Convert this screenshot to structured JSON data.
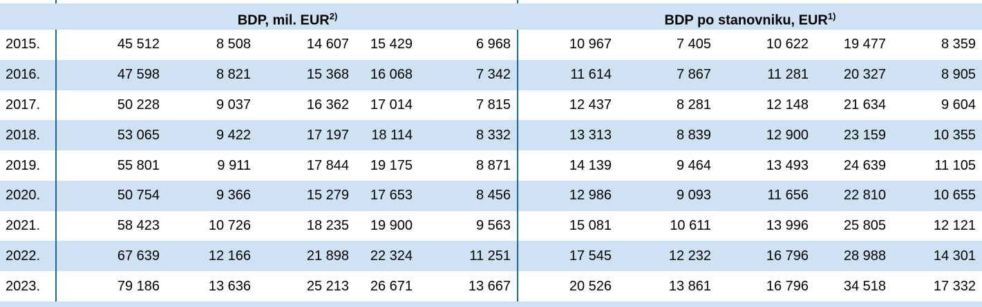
{
  "colors": {
    "band_blue": "#cfe2f3",
    "line_blue": "#17689e",
    "text": "#000000"
  },
  "header": {
    "left_group": {
      "title": "BDP, mil. EUR",
      "footnote_mark": "2)"
    },
    "right_group": {
      "title": "BDP po stanovniku, EUR",
      "footnote_mark": "1)"
    }
  },
  "rows": [
    {
      "year": "2015.",
      "bdp_mil_eur": [
        "45 512",
        "8 508",
        "14 607",
        "15 429",
        "6 968"
      ],
      "bdp_po_stanovniku_eur": [
        "10 967",
        "7 405",
        "10 622",
        "19 477",
        "8 359"
      ]
    },
    {
      "year": "2016.",
      "bdp_mil_eur": [
        "47 598",
        "8 821",
        "15 368",
        "16 068",
        "7 342"
      ],
      "bdp_po_stanovniku_eur": [
        "11 614",
        "7 867",
        "11 281",
        "20 327",
        "8 905"
      ]
    },
    {
      "year": "2017.",
      "bdp_mil_eur": [
        "50 228",
        "9 037",
        "16 362",
        "17 014",
        "7 815"
      ],
      "bdp_po_stanovniku_eur": [
        "12 437",
        "8 281",
        "12 148",
        "21 634",
        "9 604"
      ]
    },
    {
      "year": "2018.",
      "bdp_mil_eur": [
        "53 065",
        "9 422",
        "17 197",
        "18 114",
        "8 332"
      ],
      "bdp_po_stanovniku_eur": [
        "13 313",
        "8 839",
        "12 900",
        "23 159",
        "10 355"
      ]
    },
    {
      "year": "2019.",
      "bdp_mil_eur": [
        "55 801",
        "9 911",
        "17 844",
        "19 175",
        "8 871"
      ],
      "bdp_po_stanovniku_eur": [
        "14 139",
        "9 464",
        "13 493",
        "24 639",
        "11 105"
      ]
    },
    {
      "year": "2020.",
      "bdp_mil_eur": [
        "50 754",
        "9 366",
        "15 279",
        "17 653",
        "8 456"
      ],
      "bdp_po_stanovniku_eur": [
        "12 986",
        "9 093",
        "11 656",
        "22 810",
        "10 655"
      ]
    },
    {
      "year": "2021.",
      "bdp_mil_eur": [
        "58 423",
        "10 726",
        "18 235",
        "19 900",
        "9 563"
      ],
      "bdp_po_stanovniku_eur": [
        "15 081",
        "10 611",
        "13 996",
        "25 805",
        "12 121"
      ]
    },
    {
      "year": "2022.",
      "bdp_mil_eur": [
        "67 639",
        "12 166",
        "21 898",
        "22 324",
        "11 251"
      ],
      "bdp_po_stanovniku_eur": [
        "17 545",
        "12 232",
        "16 796",
        "28 988",
        "14 301"
      ]
    },
    {
      "year": "2023.",
      "bdp_mil_eur": [
        "79 186",
        "13 636",
        "25 213",
        "26 671",
        "13 667"
      ],
      "bdp_po_stanovniku_eur": [
        "20 526",
        "13 861",
        "16 796",
        "34 518",
        "17 332"
      ]
    }
  ]
}
